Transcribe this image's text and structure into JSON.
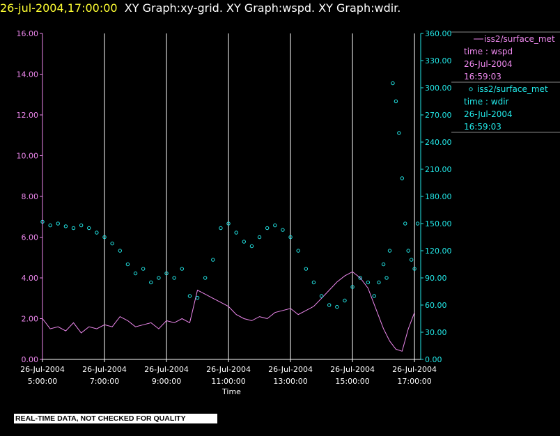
{
  "header": {
    "timestamp": "26-jul-2004,17:00:00",
    "graphs": "XY Graph:xy-grid.  XY Graph:wspd.  XY Graph:wdir."
  },
  "colors": {
    "background": "#000000",
    "wspd": "#ee88ee",
    "wdir": "#22e8e8",
    "grid": "#ffffff",
    "timestamp": "#ffff33"
  },
  "legend": [
    {
      "marker": "line",
      "lines": [
        "iss2/surface_met",
        "time : wspd",
        "26-Jul-2004",
        "16:59:03"
      ]
    },
    {
      "marker": "circle",
      "lines": [
        "iss2/surface_met",
        "time : wdir",
        "26-Jul-2004",
        "16:59:03"
      ]
    }
  ],
  "footer": "REAL-TIME DATA, NOT CHECKED FOR QUALITY",
  "chart_data": {
    "type": "line",
    "xlabel": "Time",
    "x_range": [
      5.0,
      17.2
    ],
    "y_left": {
      "range": [
        0,
        16
      ],
      "ticks": [
        "0.00",
        "2.00",
        "4.00",
        "6.00",
        "8.00",
        "10.00",
        "12.00",
        "14.00",
        "16.00"
      ]
    },
    "y_right": {
      "range": [
        0,
        360
      ],
      "ticks": [
        "0.00",
        "30.00",
        "60.00",
        "90.00",
        "120.00",
        "150.00",
        "180.00",
        "210.00",
        "240.00",
        "270.00",
        "300.00",
        "330.00",
        "360.00"
      ]
    },
    "x_ticks": [
      {
        "x": 5,
        "date": "26-Jul-2004",
        "time": "5:00:00"
      },
      {
        "x": 7,
        "date": "26-Jul-2004",
        "time": "7:00:00"
      },
      {
        "x": 9,
        "date": "26-Jul-2004",
        "time": "9:00:00"
      },
      {
        "x": 11,
        "date": "26-Jul-2004",
        "time": "11:00:00"
      },
      {
        "x": 13,
        "date": "26-Jul-2004",
        "time": "13:00:00"
      },
      {
        "x": 15,
        "date": "26-Jul-2004",
        "time": "15:00:00"
      },
      {
        "x": 17,
        "date": "26-Jul-2004",
        "time": "17:00:00"
      }
    ],
    "grid_x": [
      7,
      9,
      11,
      13,
      15,
      17
    ],
    "series": [
      {
        "axis": "left",
        "style": "line",
        "x": [
          5.0,
          5.25,
          5.5,
          5.75,
          6.0,
          6.25,
          6.5,
          6.75,
          7.0,
          7.25,
          7.5,
          7.75,
          8.0,
          8.25,
          8.5,
          8.75,
          9.0,
          9.25,
          9.5,
          9.75,
          10.0,
          10.25,
          10.5,
          10.75,
          11.0,
          11.25,
          11.5,
          11.75,
          12.0,
          12.25,
          12.5,
          12.75,
          13.0,
          13.25,
          13.5,
          13.75,
          14.0,
          14.25,
          14.5,
          14.75,
          15.0,
          15.25,
          15.5,
          15.75,
          16.0,
          16.2,
          16.4,
          16.6,
          16.8,
          17.0
        ],
        "y": [
          2.0,
          1.5,
          1.6,
          1.4,
          1.8,
          1.3,
          1.6,
          1.5,
          1.7,
          1.6,
          2.1,
          1.9,
          1.6,
          1.7,
          1.8,
          1.5,
          1.9,
          1.8,
          2.0,
          1.8,
          3.4,
          3.2,
          3.0,
          2.8,
          2.6,
          2.2,
          2.0,
          1.9,
          2.1,
          2.0,
          2.3,
          2.4,
          2.5,
          2.2,
          2.4,
          2.6,
          3.0,
          3.4,
          3.8,
          4.1,
          4.3,
          4.0,
          3.5,
          2.5,
          1.5,
          0.9,
          0.5,
          0.4,
          1.5,
          2.3
        ]
      },
      {
        "axis": "right",
        "style": "circles",
        "x": [
          5.0,
          5.25,
          5.5,
          5.75,
          6.0,
          6.25,
          6.5,
          6.75,
          7.0,
          7.25,
          7.5,
          7.75,
          8.0,
          8.25,
          8.5,
          8.75,
          9.0,
          9.25,
          9.5,
          9.75,
          10.0,
          10.25,
          10.5,
          10.75,
          11.0,
          11.25,
          11.5,
          11.75,
          12.0,
          12.25,
          12.5,
          12.75,
          13.0,
          13.25,
          13.5,
          13.75,
          14.0,
          14.25,
          14.5,
          14.75,
          15.0,
          15.25,
          15.5,
          15.7,
          15.85,
          16.0,
          16.1,
          16.2,
          16.3,
          16.4,
          16.5,
          16.6,
          16.7,
          16.8,
          16.9,
          17.0,
          17.1
        ],
        "y": [
          152,
          148,
          150,
          147,
          145,
          148,
          145,
          140,
          135,
          128,
          120,
          105,
          95,
          100,
          85,
          90,
          95,
          90,
          100,
          70,
          68,
          90,
          110,
          145,
          150,
          140,
          130,
          125,
          135,
          145,
          148,
          143,
          135,
          120,
          100,
          85,
          70,
          60,
          58,
          65,
          80,
          90,
          85,
          70,
          85,
          105,
          90,
          120,
          305,
          285,
          250,
          200,
          150,
          120,
          110,
          100,
          150
        ]
      }
    ]
  }
}
